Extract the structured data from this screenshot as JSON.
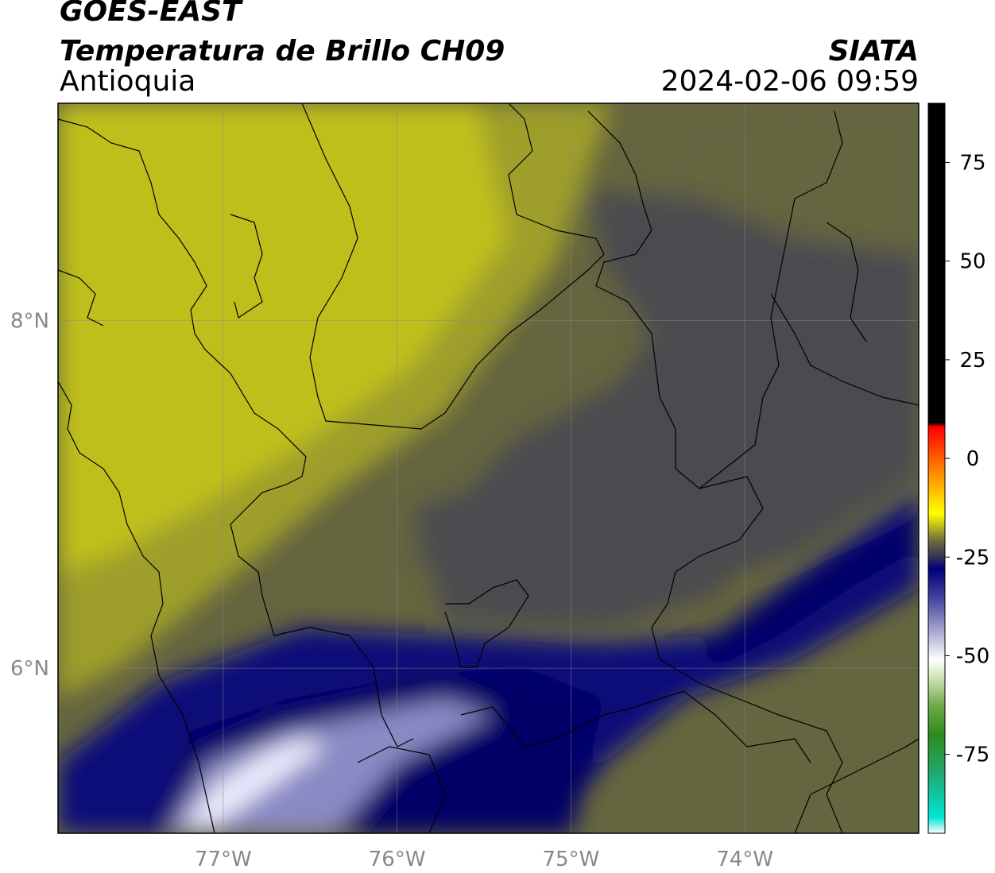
{
  "header": {
    "satellite": "GOES-EAST",
    "product": "Temperatura de Brillo CH09",
    "region": "Antioquia",
    "agency": "SIATA",
    "datetime": "2024-02-06 09:59"
  },
  "map": {
    "lon_range": [
      -77.95,
      -73.0
    ],
    "lat_range": [
      5.05,
      9.25
    ],
    "lon_ticks": [
      {
        "value": -77,
        "label": "77°W"
      },
      {
        "value": -76,
        "label": "76°W"
      },
      {
        "value": -75,
        "label": "75°W"
      },
      {
        "value": -74,
        "label": "74°W"
      }
    ],
    "lat_ticks": [
      {
        "value": 8,
        "label": "8°N"
      },
      {
        "value": 6,
        "label": "6°N"
      }
    ],
    "grid": true,
    "tick_label_color": "#888888"
  },
  "colorbar": {
    "range": [
      -95,
      90
    ],
    "ticks": [
      {
        "value": 75,
        "label": "75"
      },
      {
        "value": 50,
        "label": "50"
      },
      {
        "value": 25,
        "label": "25"
      },
      {
        "value": 0,
        "label": "0"
      },
      {
        "value": -25,
        "label": "-25"
      },
      {
        "value": -50,
        "label": "-50"
      },
      {
        "value": -75,
        "label": "-75"
      }
    ],
    "stops": [
      {
        "value": -95,
        "color": "#ffffff"
      },
      {
        "value": -91,
        "color": "#00e5d9"
      },
      {
        "value": -80,
        "color": "#1faa70"
      },
      {
        "value": -70,
        "color": "#2f8a1e"
      },
      {
        "value": -63,
        "color": "#6aa844"
      },
      {
        "value": -56,
        "color": "#c8e0b0"
      },
      {
        "value": -51,
        "color": "#ffffff"
      },
      {
        "value": -44,
        "color": "#aaaad4"
      },
      {
        "value": -36,
        "color": "#4a4aa0"
      },
      {
        "value": -28,
        "color": "#00007a"
      },
      {
        "value": -25,
        "color": "#333355"
      },
      {
        "value": -21,
        "color": "#6a6a40"
      },
      {
        "value": -14,
        "color": "#ffff00"
      },
      {
        "value": -5,
        "color": "#ff9900"
      },
      {
        "value": 5,
        "color": "#ff2200"
      },
      {
        "value": 8,
        "color": "#ff0000"
      },
      {
        "value": 9,
        "color": "#000000"
      },
      {
        "value": 90,
        "color": "#000000"
      }
    ]
  },
  "field_colors": {
    "warm": "#bfbf1e",
    "olive": "#9e9e2a",
    "gray_olive": "#65653f",
    "dark_gray": "#4b4b4f",
    "navy": "#0c0c7a",
    "navy_deep": "#020266",
    "lavender": "#8a8ac4",
    "white": "#eeeeff"
  }
}
